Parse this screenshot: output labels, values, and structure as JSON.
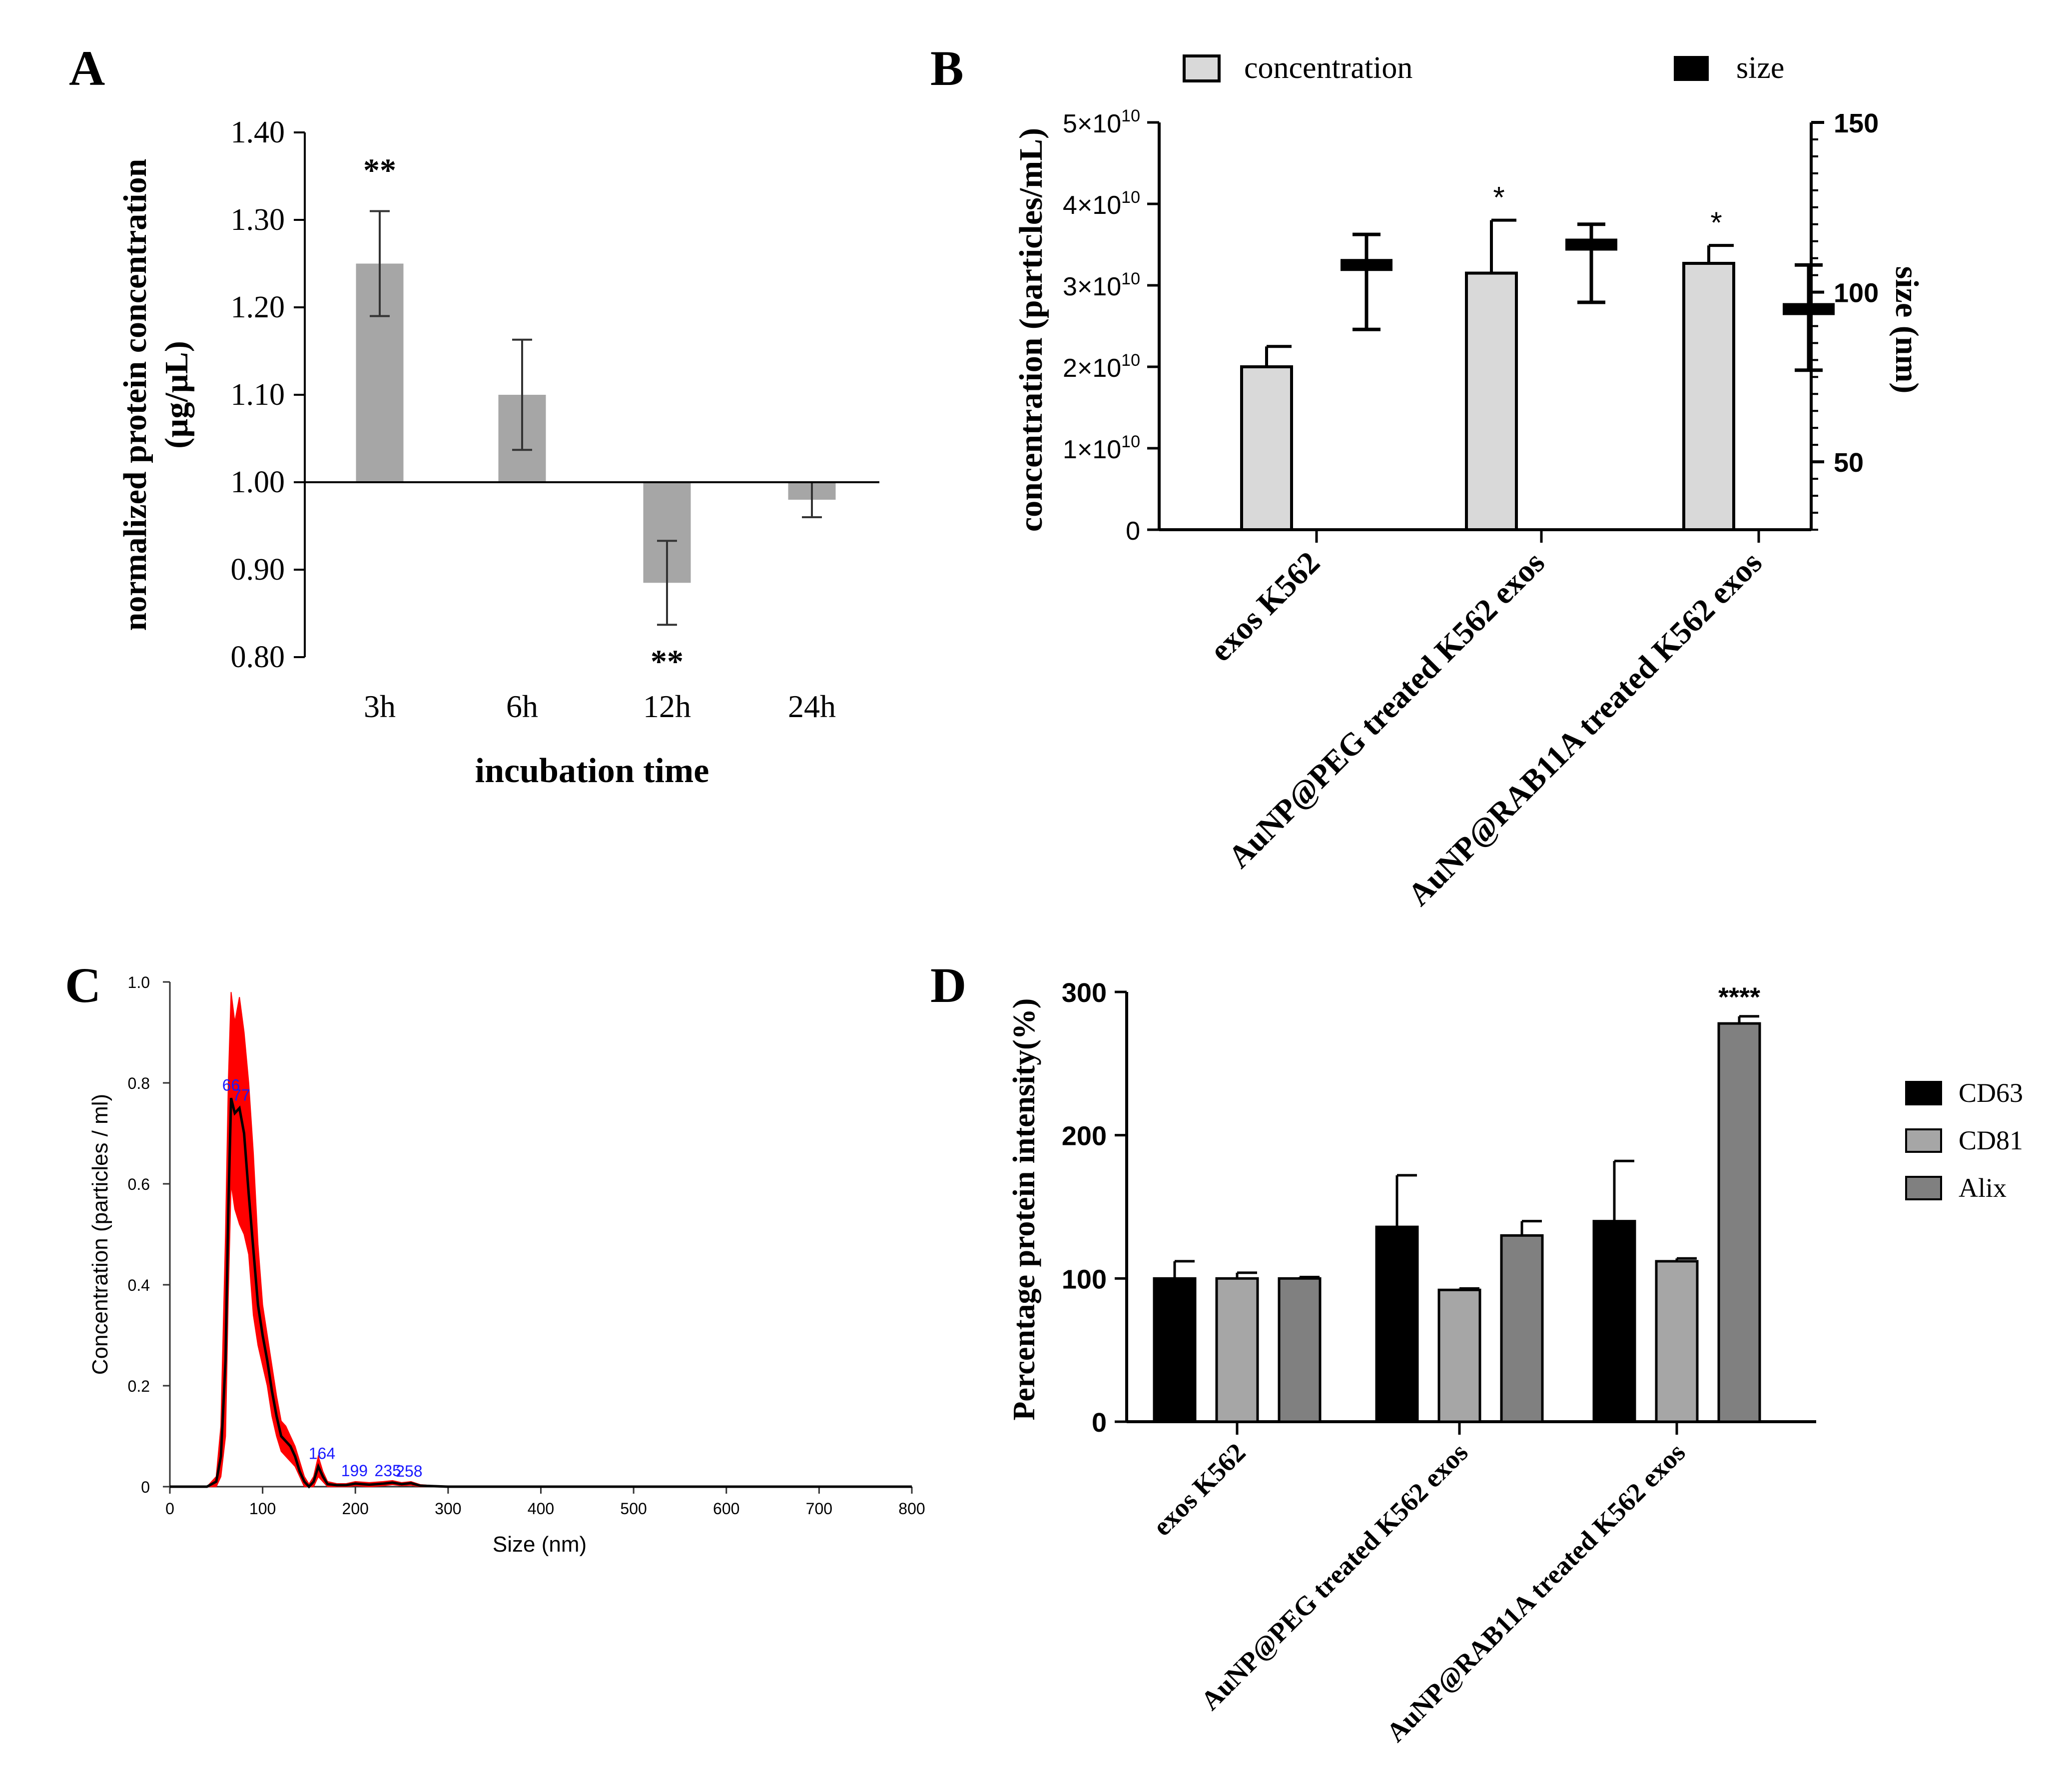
{
  "chart_data": [
    {
      "panel": "A",
      "type": "bar",
      "baseline": 1.0,
      "categories": [
        "3h",
        "6h",
        "12h",
        "24h"
      ],
      "values": [
        1.25,
        1.1,
        0.885,
        0.98
      ],
      "errors": [
        0.06,
        0.063,
        0.048,
        0.02
      ],
      "significance": [
        "**",
        "",
        "**",
        ""
      ],
      "ylim": [
        0.8,
        1.4
      ],
      "yticks": [
        "0.80",
        "0.90",
        "1.00",
        "1.10",
        "1.20",
        "1.30",
        "1.40"
      ],
      "xlabel": "incubation time",
      "ylabel": "normalized protein concentration",
      "ylabel_unit": "(µg/µL)",
      "colors": {
        "bar": "#a6a6a6",
        "axis": "#000000"
      }
    },
    {
      "panel": "B",
      "type": "bar",
      "categories": [
        "exos K562",
        "AuNP@PEG treated K562 exos",
        "AuNP@RAB11A treated K562 exos"
      ],
      "series": [
        {
          "name": "concentration",
          "axis": "left",
          "values": [
            20000000000.0,
            31500000000.0,
            32700000000.0
          ],
          "errors": [
            2500000000.0,
            6500000000.0,
            2200000000.0
          ],
          "significance": [
            "",
            "*",
            "*"
          ]
        },
        {
          "name": "size",
          "axis": "right",
          "values": [
            108,
            114,
            95
          ],
          "min": [
            89,
            97,
            77
          ],
          "max": [
            117,
            120,
            108
          ]
        }
      ],
      "ylabel": "concentration (particles/mL)",
      "y2label": "size (nm)",
      "ylim": [
        0,
        50000000000.0
      ],
      "y2lim": [
        30,
        150
      ],
      "yticks": [
        {
          "mant": "",
          "exp": "",
          "plain": "0"
        },
        {
          "mant": "1×10",
          "exp": "10",
          "plain": ""
        },
        {
          "mant": "2×10",
          "exp": "10",
          "plain": ""
        },
        {
          "mant": "3×10",
          "exp": "10",
          "plain": ""
        },
        {
          "mant": "4×10",
          "exp": "10",
          "plain": ""
        },
        {
          "mant": "5×10",
          "exp": "10",
          "plain": ""
        }
      ],
      "y2ticks": [
        "50",
        "100",
        "150"
      ],
      "legend": [
        "concentration",
        "size"
      ],
      "colors": {
        "concentration": "#d9d9d9",
        "size": "#000000"
      }
    },
    {
      "panel": "C",
      "type": "line",
      "x": [
        0,
        40,
        50,
        55,
        60,
        63,
        66,
        70,
        75,
        80,
        85,
        90,
        95,
        100,
        105,
        110,
        115,
        120,
        125,
        130,
        135,
        140,
        145,
        150,
        155,
        160,
        165,
        170,
        180,
        190,
        200,
        215,
        230,
        240,
        250,
        260,
        270,
        300,
        400,
        500,
        600,
        700,
        800
      ],
      "y": [
        0,
        0,
        0.01,
        0.06,
        0.25,
        0.55,
        0.77,
        0.74,
        0.75,
        0.7,
        0.58,
        0.47,
        0.36,
        0.3,
        0.25,
        0.19,
        0.14,
        0.1,
        0.09,
        0.08,
        0.06,
        0.03,
        0.01,
        0.0,
        0.01,
        0.04,
        0.02,
        0.005,
        0.003,
        0.003,
        0.006,
        0.004,
        0.006,
        0.008,
        0.005,
        0.007,
        0.002,
        0,
        0,
        0,
        0,
        0,
        0
      ],
      "band_upper": [
        0,
        0,
        0.02,
        0.12,
        0.5,
        0.8,
        0.98,
        0.92,
        0.97,
        0.9,
        0.8,
        0.66,
        0.48,
        0.36,
        0.3,
        0.24,
        0.18,
        0.13,
        0.12,
        0.1,
        0.08,
        0.05,
        0.02,
        0.005,
        0.02,
        0.06,
        0.03,
        0.01,
        0.006,
        0.006,
        0.01,
        0.008,
        0.01,
        0.012,
        0.008,
        0.01,
        0.004,
        0,
        0,
        0,
        0,
        0,
        0
      ],
      "band_lower": [
        0,
        0,
        0,
        0.02,
        0.1,
        0.38,
        0.6,
        0.55,
        0.52,
        0.5,
        0.46,
        0.34,
        0.28,
        0.24,
        0.2,
        0.14,
        0.1,
        0.07,
        0.06,
        0.05,
        0.04,
        0.02,
        0.0,
        0.0,
        0.0,
        0.02,
        0.01,
        0.0,
        0.0,
        0.0,
        0.002,
        0.0,
        0.002,
        0.004,
        0.002,
        0.003,
        0.0,
        0,
        0,
        0,
        0,
        0,
        0
      ],
      "peak_labels": [
        {
          "text": "66",
          "x": 66,
          "y": 0.77
        },
        {
          "text": "77",
          "x": 77,
          "y": 0.75
        },
        {
          "text": "164",
          "x": 164,
          "y": 0.04
        },
        {
          "text": "199",
          "x": 199,
          "y": 0.006
        },
        {
          "text": "235",
          "x": 235,
          "y": 0.006
        },
        {
          "text": "258",
          "x": 258,
          "y": 0.005
        }
      ],
      "xlabel": "Size (nm)",
      "ylabel": "Concentration (particles / ml)",
      "xlim": [
        0,
        800
      ],
      "ylim": [
        0,
        1.0
      ],
      "xticks": [
        "0",
        "100",
        "200",
        "300",
        "400",
        "500",
        "600",
        "700",
        "800"
      ],
      "yticks": [
        "0",
        "0.2",
        "0.4",
        "0.6",
        "0.8",
        "1.0"
      ],
      "colors": {
        "line": "#000000",
        "band": "#ff0000",
        "peak_label": "#1a1aff"
      }
    },
    {
      "panel": "D",
      "type": "bar",
      "categories": [
        "exos K562",
        "AuNP@PEG treated K562 exos",
        "AuNP@RAB11A treated K562 exos"
      ],
      "series": [
        {
          "name": "CD63",
          "values": [
            100,
            136,
            140
          ],
          "errors": [
            12,
            36,
            42
          ]
        },
        {
          "name": "CD81",
          "values": [
            100,
            92,
            112
          ],
          "errors": [
            4,
            1,
            2
          ]
        },
        {
          "name": "Alix",
          "values": [
            100,
            130,
            278
          ],
          "errors": [
            1,
            10,
            5
          ]
        }
      ],
      "significance": "****",
      "ylabel": "Percentage protein intensity(%)",
      "ylim": [
        0,
        300
      ],
      "yticks": [
        "0",
        "100",
        "200",
        "300"
      ],
      "legend": [
        "CD63",
        "CD81",
        "Alix"
      ],
      "colors": {
        "CD63": "#000000",
        "CD81": "#a6a6a6",
        "Alix": "#808080"
      }
    }
  ],
  "panel_labels": [
    "A",
    "B",
    "C",
    "D"
  ]
}
